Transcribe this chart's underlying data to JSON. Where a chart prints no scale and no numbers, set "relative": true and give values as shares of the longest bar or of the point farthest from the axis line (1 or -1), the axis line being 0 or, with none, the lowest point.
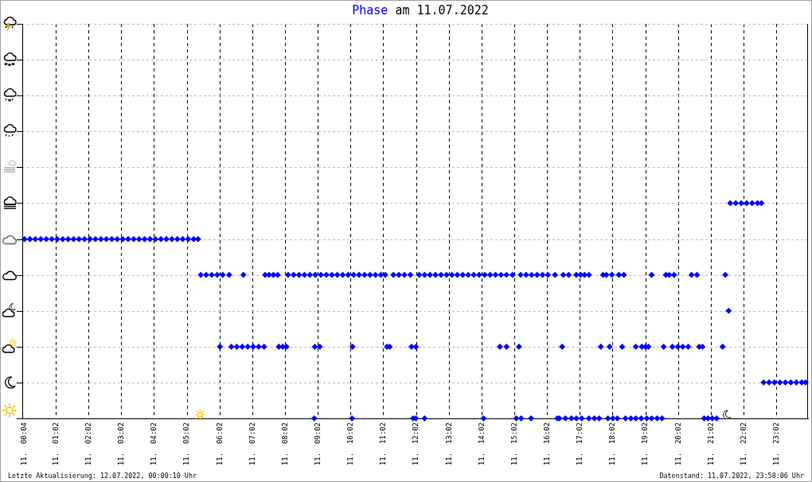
{
  "chart_data": {
    "type": "scatter",
    "title": "Phase am 11.07.2022",
    "relative": true,
    "x": [
      "2022-07-11T00:04",
      "2022-07-11T00:14",
      "2022-07-11T00:24",
      "2022-07-11T00:34",
      "2022-07-11T00:44",
      "2022-07-11T00:54",
      "2022-07-11T01:04",
      "2022-07-11T01:14",
      "2022-07-11T01:24",
      "2022-07-11T01:34",
      "2022-07-11T01:44",
      "2022-07-11T01:54",
      "2022-07-11T02:04",
      "2022-07-11T02:14",
      "2022-07-11T02:24",
      "2022-07-11T02:34",
      "2022-07-11T02:44",
      "2022-07-11T02:54",
      "2022-07-11T03:04",
      "2022-07-11T03:14",
      "2022-07-11T03:24",
      "2022-07-11T03:34",
      "2022-07-11T03:44",
      "2022-07-11T03:54",
      "2022-07-11T04:04",
      "2022-07-11T04:14",
      "2022-07-11T04:24",
      "2022-07-11T04:34",
      "2022-07-11T04:44",
      "2022-07-11T04:54",
      "2022-07-11T05:04",
      "2022-07-11T05:14",
      "2022-07-11T05:22",
      "2022-07-11T05:27",
      "2022-07-11T05:37",
      "2022-07-11T05:47",
      "2022-07-11T05:57",
      "2022-07-11T06:07",
      "2022-07-11T06:19",
      "2022-07-11T06:45",
      "2022-07-11T07:25",
      "2022-07-11T07:32",
      "2022-07-11T07:40",
      "2022-07-11T07:48",
      "2022-07-11T08:07",
      "2022-07-11T08:17",
      "2022-07-11T08:27",
      "2022-07-11T08:37",
      "2022-07-11T08:47",
      "2022-07-11T08:57",
      "2022-07-11T09:07",
      "2022-07-11T09:17",
      "2022-07-11T09:27",
      "2022-07-11T09:37",
      "2022-07-11T09:47",
      "2022-07-11T09:57",
      "2022-07-11T10:07",
      "2022-07-11T10:17",
      "2022-07-11T10:27",
      "2022-07-11T10:37",
      "2022-07-11T10:47",
      "2022-07-11T10:57",
      "2022-07-11T11:05",
      "2022-07-11T11:20",
      "2022-07-11T11:30",
      "2022-07-11T11:40",
      "2022-07-11T11:51",
      "2022-07-11T12:07",
      "2022-07-11T12:17",
      "2022-07-11T12:27",
      "2022-07-11T12:37",
      "2022-07-11T12:47",
      "2022-07-11T12:57",
      "2022-07-11T13:07",
      "2022-07-11T13:17",
      "2022-07-11T13:27",
      "2022-07-11T13:37",
      "2022-07-11T13:47",
      "2022-07-11T13:57",
      "2022-07-11T14:07",
      "2022-07-11T14:17",
      "2022-07-11T14:27",
      "2022-07-11T14:37",
      "2022-07-11T14:47",
      "2022-07-11T14:58",
      "2022-07-11T15:13",
      "2022-07-11T15:23",
      "2022-07-11T15:33",
      "2022-07-11T15:43",
      "2022-07-11T15:53",
      "2022-07-11T16:03",
      "2022-07-11T16:16",
      "2022-07-11T16:31",
      "2022-07-11T16:41",
      "2022-07-11T16:55",
      "2022-07-11T17:03",
      "2022-07-11T17:10",
      "2022-07-11T17:18",
      "2022-07-11T17:44",
      "2022-07-11T17:50",
      "2022-07-11T18:00",
      "2022-07-11T18:13",
      "2022-07-11T18:22",
      "2022-07-11T19:13",
      "2022-07-11T19:39",
      "2022-07-11T19:45",
      "2022-07-11T19:54",
      "2022-07-11T20:26",
      "2022-07-11T20:36",
      "2022-07-11T21:28",
      "2022-07-11T21:37",
      "2022-07-11T21:47",
      "2022-07-11T21:57",
      "2022-07-11T22:07",
      "2022-07-11T22:17",
      "2022-07-11T22:27",
      "2022-07-11T22:34",
      "2022-07-11T21:34",
      "2022-07-11T06:02",
      "2022-07-11T06:23",
      "2022-07-11T06:33",
      "2022-07-11T06:43",
      "2022-07-11T06:53",
      "2022-07-11T07:03",
      "2022-07-11T07:13",
      "2022-07-11T07:23",
      "2022-07-11T07:50",
      "2022-07-11T07:57",
      "2022-07-11T08:04",
      "2022-07-11T08:56",
      "2022-07-11T09:05",
      "2022-07-11T10:05",
      "2022-07-11T11:08",
      "2022-07-11T11:13",
      "2022-07-11T11:53",
      "2022-07-11T12:01",
      "2022-07-11T14:35",
      "2022-07-11T14:47",
      "2022-07-11T15:10",
      "2022-07-11T16:29",
      "2022-07-11T17:40",
      "2022-07-11T17:56",
      "2022-07-11T18:19",
      "2022-07-11T18:44",
      "2022-07-11T18:55",
      "2022-07-11T19:02",
      "2022-07-11T19:07",
      "2022-07-11T19:35",
      "2022-07-11T19:51",
      "2022-07-11T20:01",
      "2022-07-11T20:10",
      "2022-07-11T20:20",
      "2022-07-11T20:40",
      "2022-07-11T20:46",
      "2022-07-11T21:23",
      "2022-07-11T22:38",
      "2022-07-11T22:48",
      "2022-07-11T22:58",
      "2022-07-11T23:08",
      "2022-07-11T23:18",
      "2022-07-11T23:28",
      "2022-07-11T23:38",
      "2022-07-11T23:48",
      "2022-07-11T23:55",
      "2022-07-11T08:55",
      "2022-07-11T10:04",
      "2022-07-11T11:56",
      "2022-07-11T12:01",
      "2022-07-11T12:17",
      "2022-07-11T14:05",
      "2022-07-11T15:05",
      "2022-07-11T15:14",
      "2022-07-11T15:32",
      "2022-07-11T16:20",
      "2022-07-11T16:24",
      "2022-07-11T16:35",
      "2022-07-11T16:46",
      "2022-07-11T16:55",
      "2022-07-11T17:05",
      "2022-07-11T17:18",
      "2022-07-11T17:28",
      "2022-07-11T17:37",
      "2022-07-11T17:53",
      "2022-07-11T18:02",
      "2022-07-11T18:10",
      "2022-07-11T18:25",
      "2022-07-11T18:35",
      "2022-07-11T18:44",
      "2022-07-11T18:54",
      "2022-07-11T19:04",
      "2022-07-11T19:13",
      "2022-07-11T19:23",
      "2022-07-11T19:32",
      "2022-07-11T20:49",
      "2022-07-11T20:56",
      "2022-07-11T21:04",
      "2022-07-11T21:12"
    ],
    "values": [
      0.833,
      0.833,
      0.833,
      0.833,
      0.833,
      0.833,
      0.833,
      0.833,
      0.833,
      0.833,
      0.833,
      0.833,
      0.833,
      0.833,
      0.833,
      0.833,
      0.833,
      0.833,
      0.833,
      0.833,
      0.833,
      0.833,
      0.833,
      0.833,
      0.833,
      0.833,
      0.833,
      0.833,
      0.833,
      0.833,
      0.833,
      0.833,
      0.833,
      0.667,
      0.667,
      0.667,
      0.667,
      0.667,
      0.667,
      0.667,
      0.667,
      0.667,
      0.667,
      0.667,
      0.667,
      0.667,
      0.667,
      0.667,
      0.667,
      0.667,
      0.667,
      0.667,
      0.667,
      0.667,
      0.667,
      0.667,
      0.667,
      0.667,
      0.667,
      0.667,
      0.667,
      0.667,
      0.667,
      0.667,
      0.667,
      0.667,
      0.667,
      0.667,
      0.667,
      0.667,
      0.667,
      0.667,
      0.667,
      0.667,
      0.667,
      0.667,
      0.667,
      0.667,
      0.667,
      0.667,
      0.667,
      0.667,
      0.667,
      0.667,
      0.667,
      0.667,
      0.667,
      0.667,
      0.667,
      0.667,
      0.667,
      0.667,
      0.667,
      0.667,
      0.667,
      0.667,
      0.667,
      0.667,
      0.667,
      0.667,
      0.667,
      0.667,
      0.667,
      0.667,
      0.667,
      0.667,
      0.667,
      0.667,
      0.667,
      0.667,
      1,
      1,
      1,
      1,
      1,
      1,
      1,
      0.5,
      0.333,
      0.333,
      0.333,
      0.333,
      0.333,
      0.333,
      0.333,
      0.333,
      0.333,
      0.333,
      0.333,
      0.333,
      0.333,
      0.333,
      0.333,
      0.333,
      0.333,
      0.333,
      0.333,
      0.333,
      0.333,
      0.333,
      0.333,
      0.333,
      0.333,
      0.333,
      0.333,
      0.333,
      0.333,
      0.333,
      0.333,
      0.333,
      0.333,
      0.333,
      0.333,
      0.333,
      0.333,
      0.167,
      0.167,
      0.167,
      0.167,
      0.167,
      0.167,
      0.167,
      0.167,
      0.167,
      0,
      0,
      0,
      0,
      0,
      0,
      0,
      0,
      0,
      0,
      0,
      0,
      0,
      0,
      0,
      0,
      0,
      0,
      0,
      0,
      0,
      0,
      0,
      0,
      0,
      0,
      0,
      0,
      0,
      0,
      0,
      0,
      0
    ],
    "color": "#0000ff",
    "marker": "diamond",
    "xlim": [
      "2022-07-11T00:00",
      "2022-07-12T00:00"
    ],
    "xticks": [
      {
        "value": "2022-07-11T00:04",
        "label": "11.  00:04"
      },
      {
        "value": "2022-07-11T01:02",
        "label": "11.  01:02"
      },
      {
        "value": "2022-07-11T02:02",
        "label": "11.  02:02"
      },
      {
        "value": "2022-07-11T03:02",
        "label": "11.  03:02"
      },
      {
        "value": "2022-07-11T04:02",
        "label": "11.  04:02"
      },
      {
        "value": "2022-07-11T05:02",
        "label": "11.  05:02"
      },
      {
        "value": "2022-07-11T06:02",
        "label": "11.  06:02"
      },
      {
        "value": "2022-07-11T07:02",
        "label": "11.  07:02"
      },
      {
        "value": "2022-07-11T08:02",
        "label": "11.  08:02"
      },
      {
        "value": "2022-07-11T09:02",
        "label": "11.  09:02"
      },
      {
        "value": "2022-07-11T10:02",
        "label": "11.  10:02"
      },
      {
        "value": "2022-07-11T11:02",
        "label": "11.  11:02"
      },
      {
        "value": "2022-07-11T12:02",
        "label": "11.  12:02"
      },
      {
        "value": "2022-07-11T13:02",
        "label": "11.  13:02"
      },
      {
        "value": "2022-07-11T14:02",
        "label": "11.  14:02"
      },
      {
        "value": "2022-07-11T15:02",
        "label": "11.  15:02"
      },
      {
        "value": "2022-07-11T16:02",
        "label": "11.  16:02"
      },
      {
        "value": "2022-07-11T17:02",
        "label": "11.  17:02"
      },
      {
        "value": "2022-07-11T18:02",
        "label": "11.  18:02"
      },
      {
        "value": "2022-07-11T19:02",
        "label": "11.  19:02"
      },
      {
        "value": "2022-07-11T20:02",
        "label": "11.  20:02"
      },
      {
        "value": "2022-07-11T21:02",
        "label": "11.  21:02"
      },
      {
        "value": "2022-07-11T22:02",
        "label": "11.  22:02"
      },
      {
        "value": "2022-07-11T23:02",
        "label": "11.  23:02"
      }
    ],
    "grid": true,
    "annotations": [
      "Letzte Aktualisierung: 12.07.2022, 00:00:10 Uhr",
      "Datenstand: 11.07.2022, 23:58:06 Uhr"
    ]
  }
}
